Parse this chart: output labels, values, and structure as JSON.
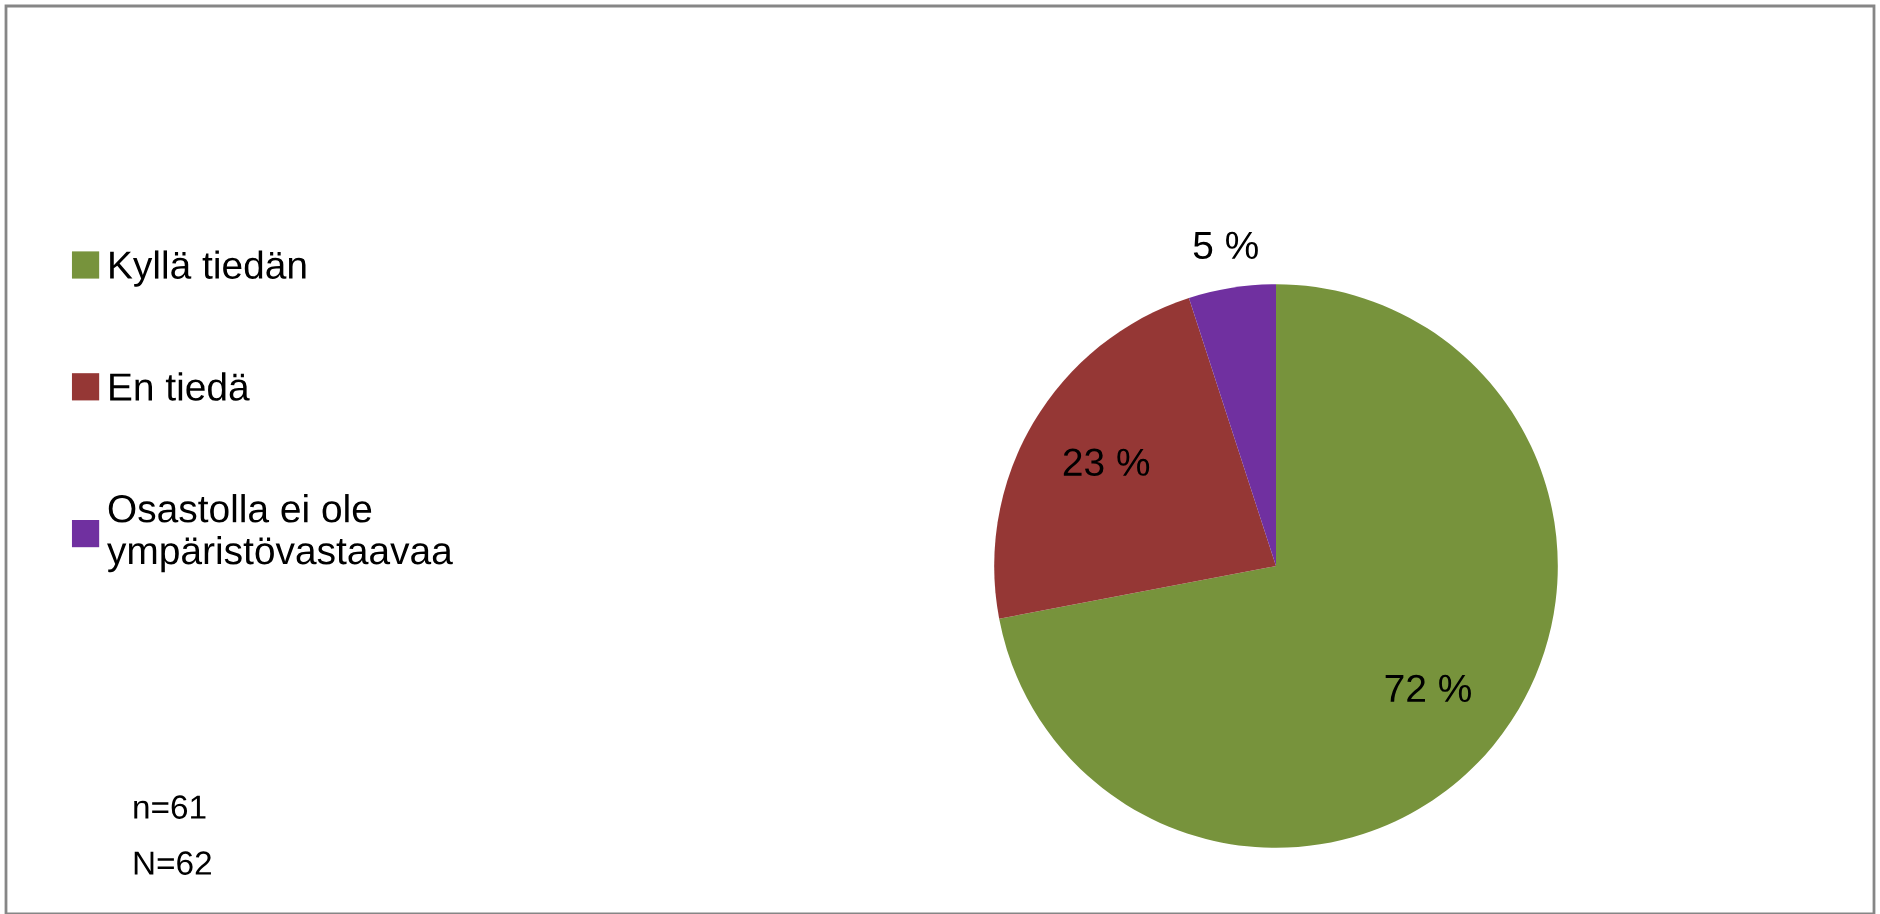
{
  "chart_data": {
    "type": "pie",
    "categories": [
      "Kyllä tiedän",
      "En tiedä",
      "Osastolla ei ole ympäristövastaavaa"
    ],
    "values": [
      72,
      23,
      5
    ],
    "colors": [
      "#77933c",
      "#953735",
      "#7030a0"
    ],
    "value_labels": [
      "72 %",
      "23 %",
      "5 %"
    ],
    "legend": "left",
    "annotations": [
      "n=61",
      "N=62"
    ]
  }
}
